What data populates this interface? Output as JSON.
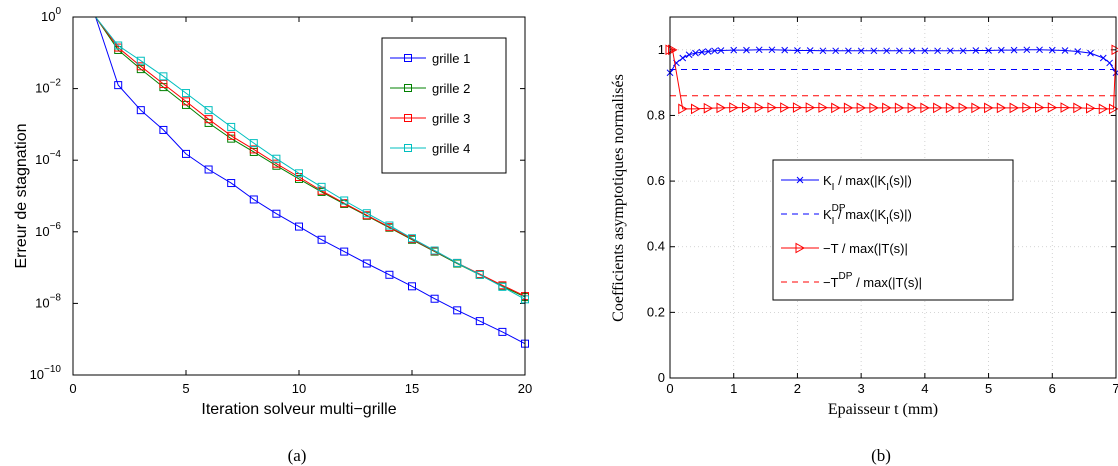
{
  "chart_data": [
    {
      "type": "line",
      "panel_label": "(a)",
      "xlabel": "Iteration solveur multi−grille",
      "ylabel": "Erreur de stagnation",
      "xlim": [
        0,
        20
      ],
      "yscale": "log",
      "ylim": [
        1e-10,
        1
      ],
      "x_ticks": [
        0,
        5,
        10,
        15,
        20
      ],
      "y_tick_base": "10",
      "y_tick_exponents": [
        "0",
        "−2",
        "−4",
        "−6",
        "−8",
        "−10"
      ],
      "legend_position": "top-right",
      "series": [
        {
          "name": "grille 1",
          "color": "#0000ff",
          "marker": "square",
          "x": [
            1,
            2,
            3,
            4,
            5,
            6,
            7,
            8,
            9,
            10,
            11,
            12,
            13,
            14,
            15,
            16,
            17,
            18,
            19,
            20
          ],
          "y": [
            1,
            0.0125,
            0.0025,
            0.0007,
            0.00015,
            5.5e-05,
            2.3e-05,
            8e-06,
            3.2e-06,
            1.4e-06,
            6e-07,
            2.8e-07,
            1.3e-07,
            6.3e-08,
            3e-08,
            1.35e-08,
            6.4e-09,
            3.2e-09,
            1.6e-09,
            7.5e-10
          ]
        },
        {
          "name": "grille 2",
          "color": "#008000",
          "marker": "square",
          "x": [
            1,
            2,
            3,
            4,
            5,
            6,
            7,
            8,
            9,
            10,
            11,
            12,
            13,
            14,
            15,
            16,
            17,
            18,
            19,
            20
          ],
          "y": [
            1,
            0.12,
            0.035,
            0.011,
            0.0035,
            0.0011,
            0.0004,
            0.00017,
            7e-05,
            3e-05,
            1.3e-05,
            6e-06,
            2.8e-06,
            1.3e-06,
            6e-07,
            2.8e-07,
            1.3e-07,
            6.3e-08,
            3e-08,
            1.5e-08
          ]
        },
        {
          "name": "grille 3",
          "color": "#ff0000",
          "marker": "square",
          "x": [
            1,
            2,
            3,
            4,
            5,
            6,
            7,
            8,
            9,
            10,
            11,
            12,
            13,
            14,
            15,
            16,
            17,
            18,
            19,
            20
          ],
          "y": [
            1,
            0.14,
            0.042,
            0.0135,
            0.0044,
            0.0014,
            0.00048,
            0.0002,
            8e-05,
            3.4e-05,
            1.4e-05,
            6.3e-06,
            2.9e-06,
            1.35e-06,
            6.3e-07,
            2.9e-07,
            1.35e-07,
            6.6e-08,
            3.2e-08,
            1.6e-08
          ]
        },
        {
          "name": "grille 4",
          "color": "#00bfbf",
          "marker": "square",
          "x": [
            1,
            2,
            3,
            4,
            5,
            6,
            7,
            8,
            9,
            10,
            11,
            12,
            13,
            14,
            15,
            16,
            17,
            18,
            19,
            20
          ],
          "y": [
            1,
            0.16,
            0.06,
            0.022,
            0.0075,
            0.0025,
            0.00085,
            0.0003,
            0.00011,
            4.3e-05,
            1.8e-05,
            7.5e-06,
            3.3e-06,
            1.5e-06,
            6.6e-07,
            3e-07,
            1.35e-07,
            6.3e-08,
            2.9e-08,
            1.3e-08
          ]
        }
      ]
    },
    {
      "type": "line",
      "panel_label": "(b)",
      "xlabel": "Epaisseur t (mm)",
      "ylabel": "Coefficients asymptotiques normalisés",
      "xlim": [
        0,
        7
      ],
      "ylim": [
        0,
        1.1
      ],
      "x_ticks": [
        "0",
        "1",
        "2",
        "3",
        "4",
        "5",
        "6",
        "7"
      ],
      "y_ticks": [
        "0",
        "0.2",
        "0.4",
        "0.6",
        "0.8",
        "1"
      ],
      "grid": true,
      "legend_position": "center-left",
      "series": [
        {
          "name_main": "K",
          "name_sub": "I",
          "name_sup": "",
          "name_rest": " / max(|K",
          "name_rest_sub": "I",
          "name_tail": "(s)|)",
          "color": "#0000ff",
          "marker": "x",
          "style": "solid",
          "x": [
            0,
            0.1,
            0.2,
            0.3,
            0.4,
            0.5,
            0.6,
            0.7,
            0.8,
            1.0,
            1.2,
            1.4,
            1.6,
            1.8,
            2.0,
            2.2,
            2.4,
            2.6,
            2.8,
            3.0,
            3.2,
            3.4,
            3.6,
            3.8,
            4.0,
            4.2,
            4.4,
            4.6,
            4.8,
            5.0,
            5.2,
            5.4,
            5.6,
            5.8,
            6.0,
            6.2,
            6.4,
            6.6,
            6.8,
            6.9,
            7.0
          ],
          "y": [
            0.93,
            0.96,
            0.975,
            0.985,
            0.99,
            0.993,
            0.995,
            0.997,
            0.998,
            0.999,
            0.999,
            1.0,
            1.0,
            0.999,
            0.998,
            0.998,
            0.997,
            0.997,
            0.997,
            0.997,
            0.997,
            0.997,
            0.997,
            0.997,
            0.997,
            0.997,
            0.997,
            0.997,
            0.998,
            0.998,
            0.999,
            0.999,
            1.0,
            1.0,
            0.999,
            0.998,
            0.995,
            0.99,
            0.975,
            0.96,
            0.93
          ]
        },
        {
          "name_main": "K",
          "name_sub": "I",
          "name_sup": "DP",
          "name_rest": " / max(|K",
          "name_rest_sub": "I",
          "name_tail": "(s)|)",
          "color": "#0000ff",
          "marker": "none",
          "style": "dashed",
          "x": [
            0,
            7
          ],
          "y": [
            0.94,
            0.94
          ]
        },
        {
          "name_main": "−T",
          "name_sub": "",
          "name_sup": "",
          "name_rest": " / max(|T(s)|",
          "name_rest_sub": "",
          "name_tail": "",
          "color": "#ff0000",
          "marker": "triangle-right",
          "style": "solid",
          "x": [
            0,
            0.04,
            0.2,
            0.4,
            0.6,
            0.8,
            1.0,
            1.2,
            1.4,
            1.6,
            1.8,
            2.0,
            2.2,
            2.4,
            2.6,
            2.8,
            3.0,
            3.2,
            3.4,
            3.6,
            3.8,
            4.0,
            4.2,
            4.4,
            4.6,
            4.8,
            5.0,
            5.2,
            5.4,
            5.6,
            5.8,
            6.0,
            6.2,
            6.4,
            6.6,
            6.8,
            6.96,
            7.0
          ],
          "y": [
            1.0,
            1.0,
            0.82,
            0.82,
            0.822,
            0.823,
            0.824,
            0.824,
            0.824,
            0.824,
            0.824,
            0.824,
            0.824,
            0.824,
            0.823,
            0.823,
            0.823,
            0.823,
            0.823,
            0.823,
            0.823,
            0.823,
            0.823,
            0.823,
            0.823,
            0.823,
            0.823,
            0.823,
            0.823,
            0.824,
            0.824,
            0.824,
            0.824,
            0.823,
            0.822,
            0.82,
            0.82,
            1.0
          ]
        },
        {
          "name_main": "−T",
          "name_sub": "",
          "name_sup": "DP",
          "name_rest": " / max(|T(s)|",
          "name_rest_sub": "",
          "name_tail": "",
          "color": "#ff0000",
          "marker": "none",
          "style": "dashed",
          "x": [
            0,
            7
          ],
          "y": [
            0.86,
            0.86
          ]
        }
      ]
    }
  ]
}
